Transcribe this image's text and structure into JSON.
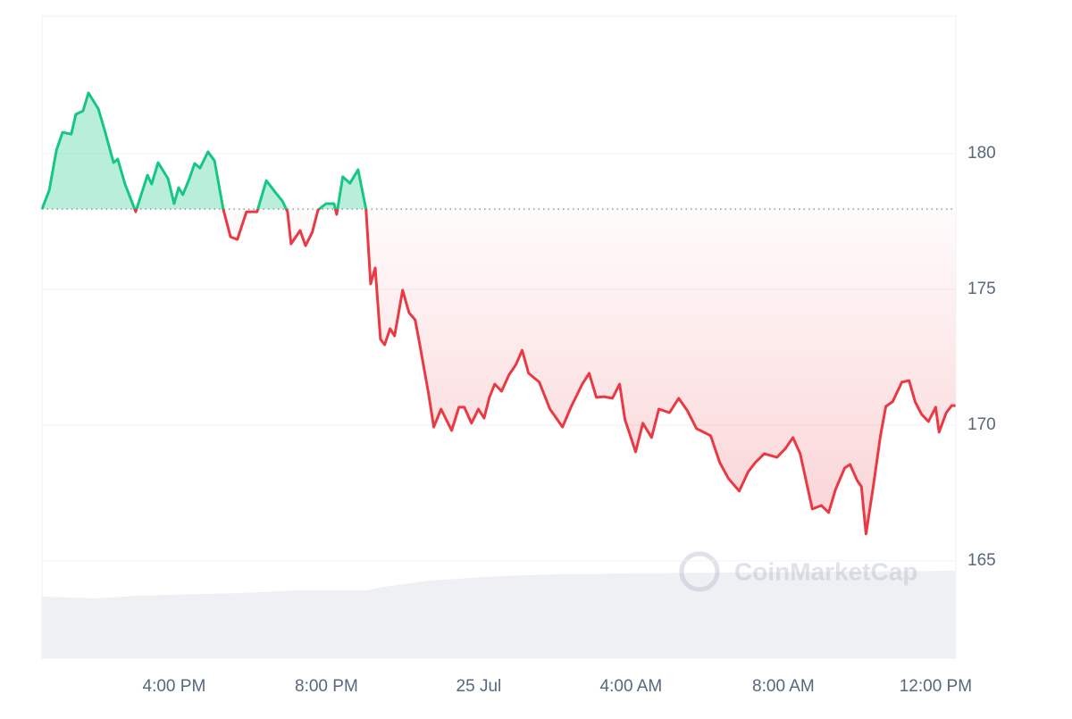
{
  "chart_data": {
    "type": "line",
    "watermark": "CoinMarketCap",
    "x": [
      12.53,
      12.72,
      12.91,
      13.07,
      13.3,
      13.42,
      13.61,
      13.75,
      14.01,
      14.19,
      14.41,
      14.52,
      14.71,
      14.99,
      15.3,
      15.41,
      15.58,
      15.84,
      16.0,
      16.12,
      16.23,
      16.4,
      16.54,
      16.68,
      16.89,
      17.06,
      17.29,
      17.48,
      17.66,
      17.9,
      18.18,
      18.42,
      18.65,
      18.84,
      18.98,
      19.07,
      19.31,
      19.45,
      19.63,
      19.78,
      19.99,
      20.2,
      20.27,
      20.43,
      20.62,
      20.83,
      21.04,
      21.16,
      21.28,
      21.42,
      21.53,
      21.67,
      21.79,
      22.0,
      22.17,
      22.33,
      22.45,
      22.68,
      22.82,
      23.01,
      23.29,
      23.48,
      23.62,
      23.81,
      23.99,
      24.14,
      24.28,
      24.42,
      24.6,
      24.79,
      24.98,
      25.14,
      25.31,
      25.59,
      25.87,
      26.2,
      26.43,
      26.72,
      26.9,
      27.09,
      27.28,
      27.51,
      27.7,
      27.84,
      27.98,
      28.12,
      28.31,
      28.54,
      28.73,
      29.01,
      29.25,
      29.48,
      29.72,
      30.09,
      30.33,
      30.56,
      30.84,
      31.08,
      31.26,
      31.5,
      31.83,
      32.06,
      32.25,
      32.44,
      32.76,
      33.0,
      33.19,
      33.37,
      33.61,
      33.75,
      33.94,
      34.05,
      34.17,
      34.36,
      34.55,
      34.69,
      34.87,
      35.11,
      35.3,
      35.46,
      35.63,
      35.81,
      36.0,
      36.09,
      36.28,
      36.42,
      36.52
    ],
    "values": [
      177.96,
      178.65,
      180.13,
      180.79,
      180.72,
      181.45,
      181.58,
      182.24,
      181.65,
      180.79,
      179.67,
      179.8,
      178.88,
      177.86,
      179.21,
      178.88,
      179.67,
      179.08,
      178.16,
      178.75,
      178.49,
      179.08,
      179.64,
      179.47,
      180.07,
      179.74,
      177.96,
      176.94,
      176.84,
      177.86,
      177.86,
      179.01,
      178.59,
      178.26,
      177.86,
      176.68,
      177.17,
      176.61,
      177.11,
      177.93,
      178.16,
      178.16,
      177.76,
      179.15,
      178.91,
      179.41,
      177.96,
      175.2,
      175.79,
      173.16,
      172.96,
      173.55,
      173.29,
      174.97,
      174.14,
      173.88,
      172.99,
      171.18,
      169.93,
      170.59,
      169.8,
      170.66,
      170.66,
      170.07,
      170.59,
      170.26,
      171.02,
      171.51,
      171.25,
      171.84,
      172.24,
      172.76,
      171.91,
      171.58,
      170.59,
      169.93,
      170.69,
      171.51,
      171.91,
      171.02,
      171.05,
      170.99,
      171.51,
      170.2,
      169.61,
      169.01,
      170.07,
      169.54,
      170.59,
      170.46,
      170.99,
      170.53,
      169.87,
      169.61,
      168.62,
      168.03,
      167.57,
      168.29,
      168.62,
      168.95,
      168.81,
      169.15,
      169.54,
      168.95,
      166.91,
      167.04,
      166.78,
      167.63,
      168.42,
      168.55,
      167.96,
      167.73,
      165.99,
      167.73,
      169.61,
      170.69,
      170.86,
      171.58,
      171.64,
      170.86,
      170.4,
      170.13,
      170.66,
      169.74,
      170.46,
      170.72,
      170.72
    ],
    "baseline": 177.96,
    "up_color": "#16c784",
    "down_color": "#ea3943",
    "xlim": [
      12.53,
      36.53
    ],
    "xticks": [
      {
        "value": 16,
        "label": "4:00 PM"
      },
      {
        "value": 20,
        "label": "8:00 PM"
      },
      {
        "value": 24,
        "label": "25 Jul"
      },
      {
        "value": 28,
        "label": "4:00 AM"
      },
      {
        "value": 32,
        "label": "8:00 AM"
      },
      {
        "value": 36,
        "label": "12:00 PM"
      }
    ],
    "ylim": [
      161.41,
      185.07
    ],
    "yticks": [
      165,
      170,
      175,
      180
    ],
    "grid": true
  }
}
